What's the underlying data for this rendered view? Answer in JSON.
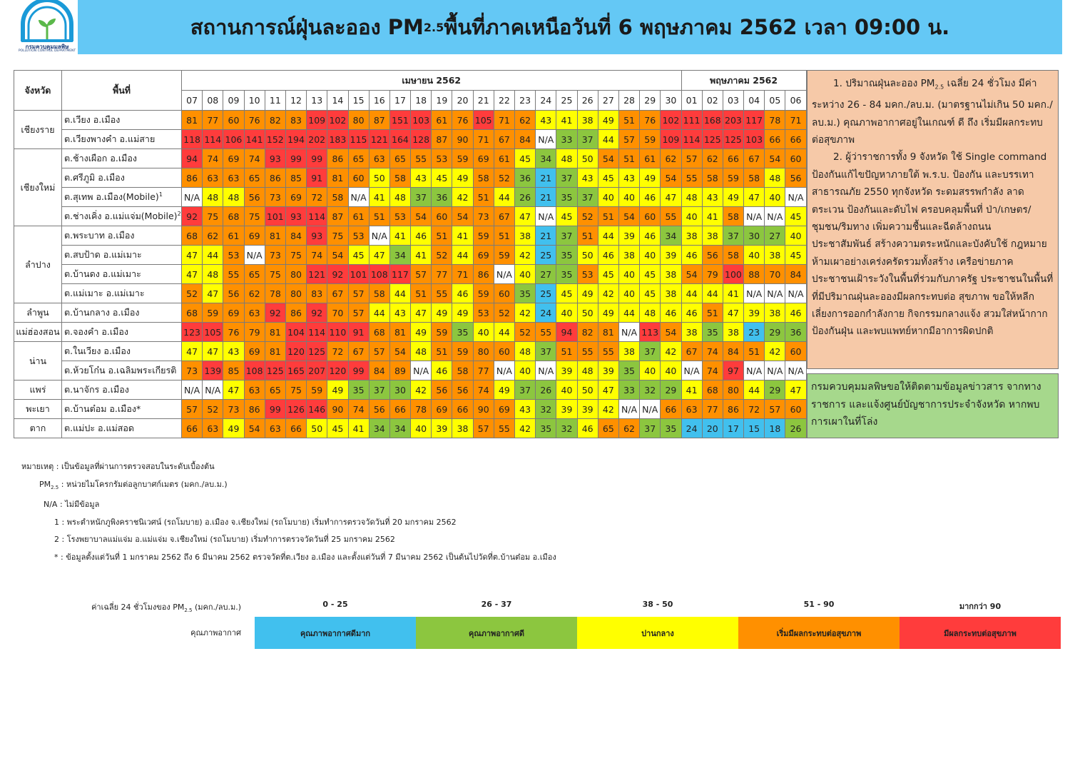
{
  "header": {
    "logo_text_th": "กรมควบคุมมลพิษ",
    "logo_text_en": "POLLUTION CONTROL DEPARTMENT",
    "title_prefix": "สถานการณ์ฝุ่นละออง PM",
    "title_sub": "2.5",
    "title_suffix": "พื้นที่ภาคเหนือวันที่ 6 พฤษภาคม 2562 เวลา 09:00 น."
  },
  "colors": {
    "very_good": "#41c0ee",
    "good": "#8cc63f",
    "moderate": "#ffff00",
    "starting_effect": "#ff9000",
    "health_effect": "#ff3c3c",
    "banner": "#64c8f5"
  },
  "table": {
    "col_province": "จังหวัด",
    "col_area": "พื้นที่",
    "month1": "เมษายน 2562",
    "month2": "พฤษภาคม 2562",
    "days": [
      "07",
      "08",
      "09",
      "10",
      "11",
      "12",
      "13",
      "14",
      "15",
      "16",
      "17",
      "18",
      "19",
      "20",
      "21",
      "22",
      "23",
      "24",
      "25",
      "26",
      "27",
      "28",
      "29",
      "30",
      "01",
      "02",
      "03",
      "04",
      "05",
      "06"
    ],
    "groups": [
      {
        "province": "เชียงราย",
        "stations": [
          {
            "area": "ต.เวียง อ.เมือง",
            "values": [
              81,
              77,
              60,
              76,
              82,
              83,
              109,
              102,
              80,
              87,
              151,
              103,
              61,
              76,
              105,
              71,
              62,
              43,
              41,
              38,
              49,
              51,
              76,
              102,
              111,
              168,
              203,
              117,
              78,
              71
            ]
          },
          {
            "area": "ต.เวียงพางคำ อ.แม่สาย",
            "values": [
              118,
              114,
              106,
              141,
              152,
              194,
              202,
              183,
              115,
              121,
              164,
              128,
              87,
              90,
              71,
              67,
              84,
              "N/A",
              33,
              37,
              44,
              57,
              59,
              109,
              114,
              125,
              125,
              103,
              66,
              66
            ]
          }
        ]
      },
      {
        "province": "เชียงใหม่",
        "stations": [
          {
            "area": "ต.ช้างเผือก อ.เมือง",
            "values": [
              94,
              74,
              69,
              74,
              93,
              99,
              99,
              86,
              65,
              63,
              65,
              55,
              53,
              59,
              69,
              61,
              45,
              34,
              48,
              50,
              54,
              51,
              61,
              62,
              57,
              62,
              66,
              67,
              54,
              60
            ]
          },
          {
            "area": "ต.ศรีภูมิ อ.เมือง",
            "values": [
              86,
              63,
              63,
              65,
              86,
              85,
              91,
              81,
              60,
              50,
              58,
              43,
              45,
              49,
              58,
              52,
              36,
              21,
              37,
              43,
              45,
              43,
              49,
              54,
              55,
              58,
              59,
              58,
              48,
              56
            ]
          },
          {
            "area": "ต.สุเทพ อ.เมือง(Mobile)",
            "sup": "1",
            "values": [
              "N/A",
              48,
              48,
              56,
              73,
              69,
              72,
              58,
              "N/A",
              41,
              48,
              37,
              36,
              42,
              51,
              44,
              26,
              21,
              35,
              37,
              40,
              40,
              46,
              47,
              48,
              43,
              49,
              47,
              40,
              "N/A"
            ]
          },
          {
            "area": "ต.ช่างเคิ่ง อ.แม่แจ่ม(Mobile)",
            "sup": "2",
            "values": [
              92,
              75,
              68,
              75,
              101,
              93,
              114,
              87,
              61,
              51,
              53,
              54,
              60,
              54,
              73,
              67,
              47,
              "N/A",
              45,
              52,
              51,
              54,
              60,
              55,
              40,
              41,
              58,
              "N/A",
              "N/A",
              45
            ]
          }
        ]
      },
      {
        "province": "ลำปาง",
        "stations": [
          {
            "area": "ต.พระบาท อ.เมือง",
            "values": [
              68,
              62,
              61,
              69,
              81,
              84,
              93,
              75,
              53,
              "N/A",
              41,
              46,
              51,
              41,
              59,
              51,
              38,
              21,
              37,
              51,
              44,
              39,
              46,
              34,
              38,
              38,
              37,
              30,
              27,
              40
            ]
          },
          {
            "area": "ต.สบป้าด อ.แม่เมาะ",
            "values": [
              47,
              44,
              53,
              "N/A",
              73,
              75,
              74,
              54,
              45,
              47,
              34,
              41,
              52,
              44,
              69,
              59,
              42,
              25,
              35,
              50,
              46,
              38,
              40,
              39,
              46,
              56,
              58,
              40,
              38,
              45
            ]
          },
          {
            "area": "ต.บ้านดง อ.แม่เมาะ",
            "values": [
              47,
              48,
              55,
              65,
              75,
              80,
              121,
              92,
              101,
              108,
              117,
              57,
              77,
              71,
              86,
              "N/A",
              40,
              27,
              35,
              53,
              45,
              40,
              45,
              38,
              54,
              79,
              100,
              88,
              70,
              84
            ]
          },
          {
            "area": "ต.แม่เมาะ อ.แม่เมาะ",
            "values": [
              52,
              47,
              56,
              62,
              78,
              80,
              83,
              67,
              57,
              58,
              44,
              51,
              55,
              46,
              59,
              60,
              35,
              25,
              45,
              49,
              42,
              40,
              45,
              38,
              44,
              44,
              41,
              "N/A",
              "N/A",
              "N/A"
            ]
          }
        ]
      },
      {
        "province": "ลำพูน",
        "stations": [
          {
            "area": "ต.บ้านกลาง อ.เมือง",
            "values": [
              68,
              59,
              69,
              63,
              92,
              86,
              92,
              70,
              57,
              44,
              43,
              47,
              49,
              49,
              53,
              52,
              42,
              24,
              40,
              50,
              49,
              44,
              48,
              46,
              46,
              51,
              47,
              39,
              38,
              46
            ]
          }
        ]
      },
      {
        "province": "แม่ฮ่องสอน",
        "stations": [
          {
            "area": "ต.จองคำ อ.เมือง",
            "values": [
              123,
              105,
              76,
              79,
              81,
              104,
              114,
              110,
              91,
              68,
              81,
              49,
              59,
              35,
              40,
              44,
              52,
              55,
              94,
              82,
              81,
              "N/A",
              113,
              54,
              38,
              35,
              38,
              23,
              29,
              36
            ]
          }
        ]
      },
      {
        "province": "น่าน",
        "stations": [
          {
            "area": "ต.ในเวียง อ.เมือง",
            "values": [
              47,
              47,
              43,
              69,
              81,
              120,
              125,
              72,
              67,
              57,
              54,
              48,
              51,
              59,
              80,
              60,
              48,
              37,
              51,
              55,
              55,
              38,
              37,
              42,
              67,
              74,
              84,
              51,
              42,
              60
            ]
          },
          {
            "area": "ต.ห้วยโก๋น อ.เฉลิมพระเกียรติ",
            "values": [
              73,
              139,
              85,
              108,
              125,
              165,
              207,
              120,
              99,
              84,
              89,
              "N/A",
              46,
              58,
              77,
              "N/A",
              40,
              "N/A",
              39,
              48,
              39,
              35,
              40,
              40,
              "N/A",
              74,
              97,
              "N/A",
              "N/A",
              "N/A"
            ]
          }
        ]
      },
      {
        "province": "แพร่",
        "stations": [
          {
            "area": "ต.นาจักร อ.เมือง",
            "values": [
              "N/A",
              "N/A",
              47,
              63,
              65,
              75,
              59,
              49,
              35,
              37,
              30,
              42,
              56,
              56,
              74,
              49,
              37,
              26,
              40,
              50,
              47,
              33,
              32,
              29,
              41,
              68,
              80,
              44,
              29,
              47
            ]
          }
        ]
      },
      {
        "province": "พะเยา",
        "stations": [
          {
            "area": "ต.บ้านต๋อม อ.เมือง*",
            "values": [
              57,
              52,
              73,
              86,
              99,
              126,
              146,
              90,
              74,
              56,
              66,
              78,
              69,
              66,
              90,
              69,
              43,
              32,
              39,
              39,
              42,
              "N/A",
              "N/A",
              66,
              63,
              77,
              86,
              72,
              57,
              60
            ]
          }
        ]
      },
      {
        "province": "ตาก",
        "stations": [
          {
            "area": "ต.แม่ปะ อ.แม่สอด",
            "values": [
              66,
              63,
              49,
              54,
              63,
              66,
              50,
              45,
              41,
              34,
              34,
              40,
              39,
              38,
              57,
              55,
              42,
              35,
              32,
              46,
              65,
              62,
              37,
              35,
              24,
              20,
              17,
              15,
              18,
              26
            ]
          }
        ]
      }
    ]
  },
  "notes": {
    "p1_prefix": "1. ปริมาณฝุ่นละออง PM",
    "p1_sub": "2.5",
    "p1_suffix": " เฉลี่ย 24 ชั่วโมง มีค่าระหว่าง 26 - 84 มคก./ลบ.ม. (มาตรฐานไม่เกิน 50 มคก./ลบ.ม.) คุณภาพอากาศอยู่ในเกณฑ์ ดี ถึง เริ่มมีผลกระทบต่อสุขภาพ",
    "p2": "2. ผู้ว่าราชการทั้ง 9 จังหวัด ใช้ Single command ป้องกันแก้ไขปัญหาภายใต้ พ.ร.บ. ป้องกัน และบรรเทาสาธารณภัย 2550 ทุกจังหวัด ระดมสรรพกำลัง ลาดตระเวน ป้องกันและดับไฟ ครอบคลุมพื้นที่ ป่า/เกษตร/ชุมชน/ริมทาง เพิ่มความชื้นและฉีดล้างถนน ประชาสัมพันธ์ สร้างความตระหนักและบังคับใช้ กฎหมายห้ามเผาอย่างเคร่งครัดรวมทั้งสร้าง เครือข่ายภาคประชาชนเฝ้าระวังในพื้นที่ร่วมกับภาครัฐ ประชาชนในพื้นที่ที่มีปริมาณฝุ่นละอองมีผลกระทบต่อ สุขภาพ ขอให้หลีกเลี่ยงการออกกำลังกาย กิจกรรมกลางแจ้ง สวมใส่หน้ากากป้องกันฝุ่น และพบแพทย์หากมีอาการผิดปกติ",
    "contact": "กรมควบคุมมลพิษขอให้ติดตามข้อมูลข่าวสาร จากทางราชการ และแจ้งศูนย์บัญชาการประจำจังหวัด หากพบการเผาในที่โล่ง"
  },
  "remarks": {
    "r1": "หมายเหตุ : เป็นข้อมูลที่ผ่านการตรวจสอบในระดับเบื้องต้น",
    "r2_prefix": "PM",
    "r2_sub": "2.5",
    "r2_suffix": " : หน่วยไมโครกรัมต่อลูกบาศก์เมตร (มคก./ลบ.ม.)",
    "r3": "N/A : ไม่มีข้อมูล",
    "r4": "1 : พระตำหนักภูพิงคราชนิเวศน์ (รถโมบาย) อ.เมือง จ.เชียงใหม่ (รถโมบาย)  เริ่มทำการตรวจวัดวันที่ 20 มกราคม 2562",
    "r5": "2 : โรงพยาบาลแม่แจ่ม อ.แม่แจ่ม จ.เชียงใหม่ (รถโมบาย)  เริ่มทำการตรวจวัดวันที่ 25 มกราคม 2562",
    "r6": "* : ข้อมูลตั้งแต่วันที่ 1 มกราคม 2562 ถึง 6 มีนาคม 2562 ตรวจวัดที่ต.เวียง อ.เมือง และตั้งแต่วันที่ 7 มีนาคม 2562 เป็นต้นไปวัดที่ต.บ้านต๋อม อ.เมือง"
  },
  "legend": {
    "caption_prefix": "ค่าเฉลี่ย 24 ชั่วโมงของ PM",
    "caption_sub": "2.5",
    "caption_suffix": " (มคก./ลบ.ม.)",
    "quality_label": "คุณภาพอากาศ",
    "levels": [
      {
        "range": "0 - 25",
        "label": "คุณภาพอากาศดีมาก",
        "color": "#41c0ee"
      },
      {
        "range": "26 - 37",
        "label": "คุณภาพอากาศดี",
        "color": "#8cc63f"
      },
      {
        "range": "38 - 50",
        "label": "ปานกลาง",
        "color": "#ffff00"
      },
      {
        "range": "51 - 90",
        "label": "เริ่มมีผลกระทบต่อสุขภาพ",
        "color": "#ff9000"
      },
      {
        "range": "มากกว่า 90",
        "label": "มีผลกระทบต่อสุขภาพ",
        "color": "#ff3c3c"
      }
    ]
  }
}
